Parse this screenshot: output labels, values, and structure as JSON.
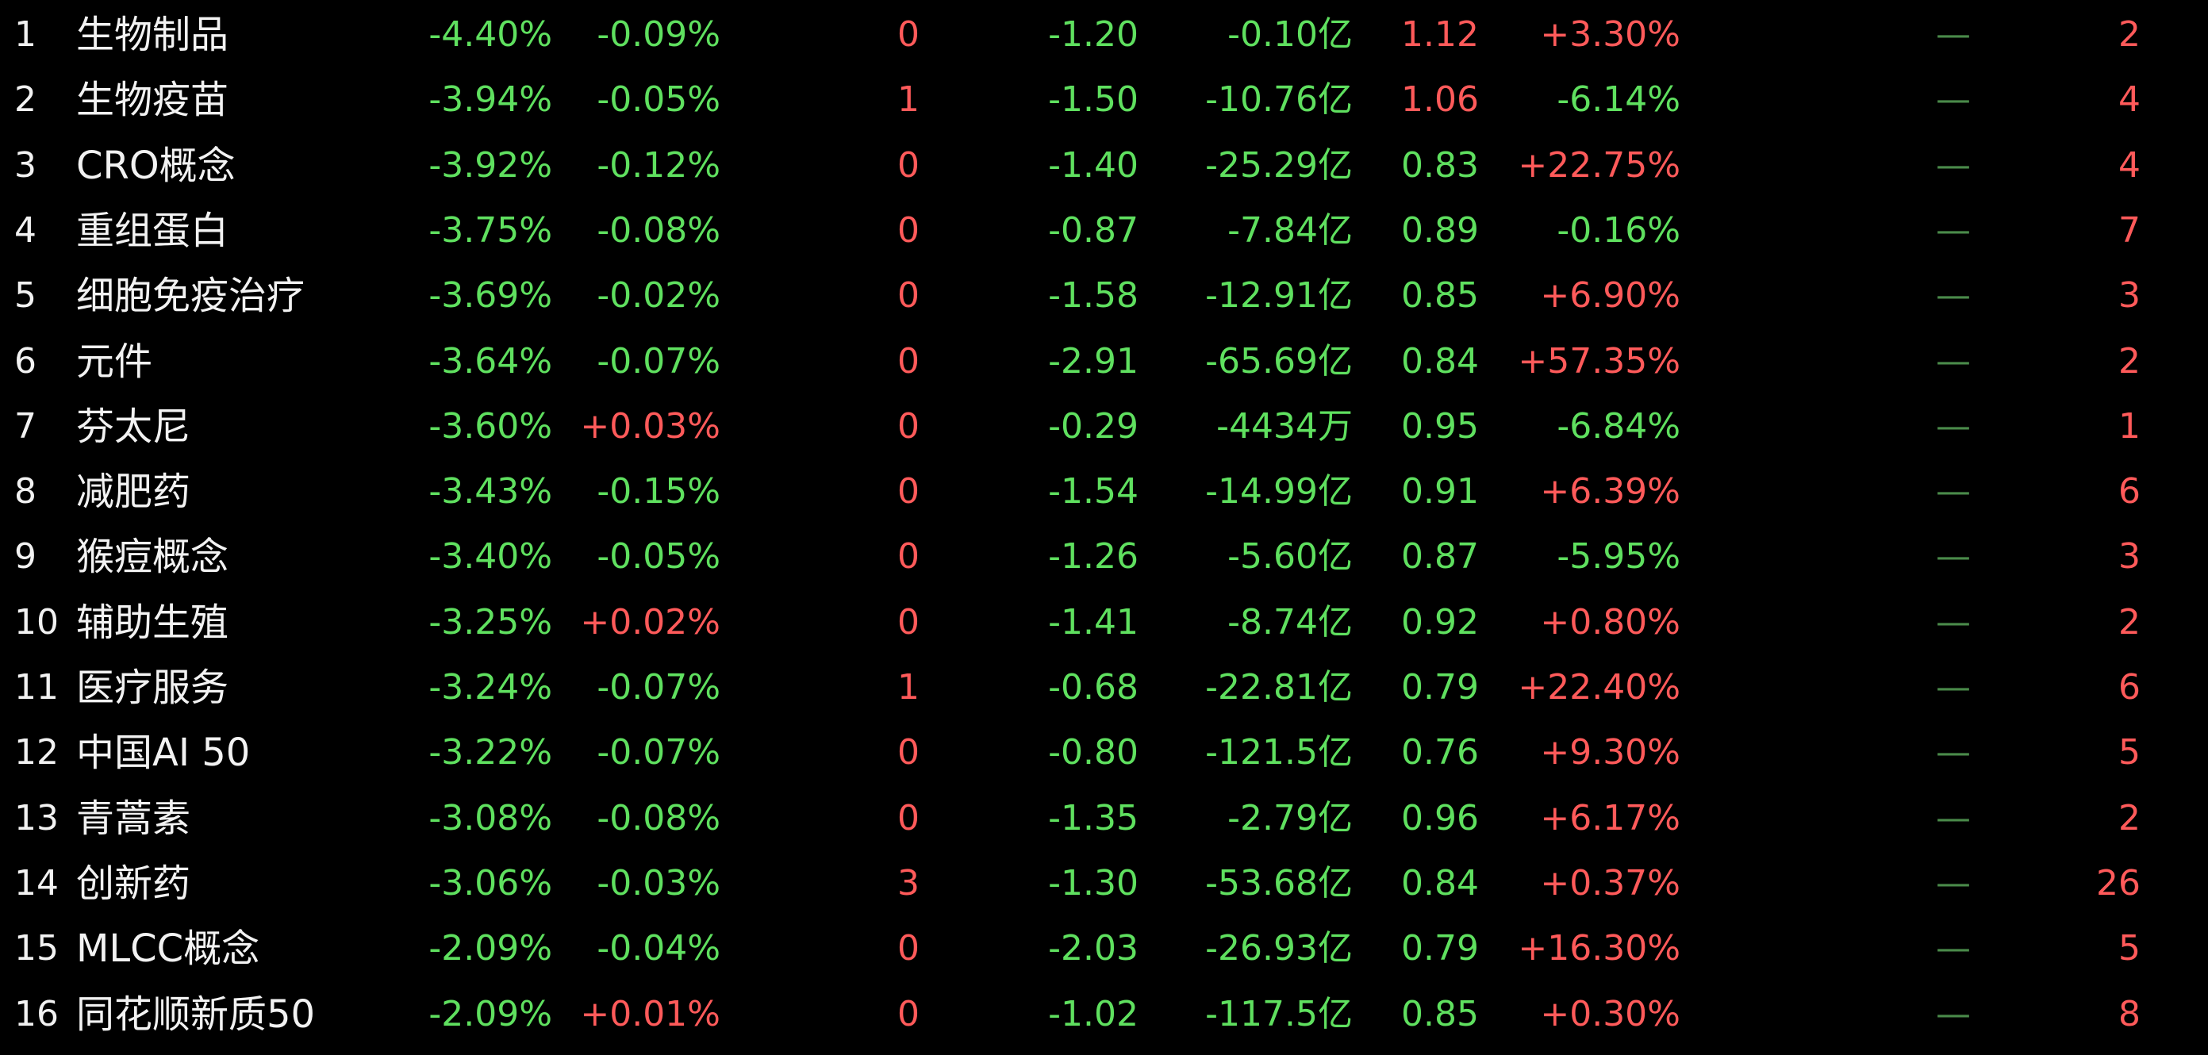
{
  "table": {
    "rows": [
      [
        "1",
        "生物制品",
        "-4.40%",
        "-0.09%",
        "0",
        "-1.20",
        "-0.10亿",
        "1.12",
        "+3.30%",
        "—",
        "2"
      ],
      [
        "2",
        "生物疫苗",
        "-3.94%",
        "-0.05%",
        "1",
        "-1.50",
        "-10.76亿",
        "1.06",
        "-6.14%",
        "—",
        "4"
      ],
      [
        "3",
        "CRO概念",
        "-3.92%",
        "-0.12%",
        "0",
        "-1.40",
        "-25.29亿",
        "0.83",
        "+22.75%",
        "—",
        "4"
      ],
      [
        "4",
        "重组蛋白",
        "-3.75%",
        "-0.08%",
        "0",
        "-0.87",
        "-7.84亿",
        "0.89",
        "-0.16%",
        "—",
        "7"
      ],
      [
        "5",
        "细胞免疫治疗",
        "-3.69%",
        "-0.02%",
        "0",
        "-1.58",
        "-12.91亿",
        "0.85",
        "+6.90%",
        "—",
        "3"
      ],
      [
        "6",
        "元件",
        "-3.64%",
        "-0.07%",
        "0",
        "-2.91",
        "-65.69亿",
        "0.84",
        "+57.35%",
        "—",
        "2"
      ],
      [
        "7",
        "芬太尼",
        "-3.60%",
        "+0.03%",
        "0",
        "-0.29",
        "-4434万",
        "0.95",
        "-6.84%",
        "—",
        "1"
      ],
      [
        "8",
        "减肥药",
        "-3.43%",
        "-0.15%",
        "0",
        "-1.54",
        "-14.99亿",
        "0.91",
        "+6.39%",
        "—",
        "6"
      ],
      [
        "9",
        "猴痘概念",
        "-3.40%",
        "-0.05%",
        "0",
        "-1.26",
        "-5.60亿",
        "0.87",
        "-5.95%",
        "—",
        "3"
      ],
      [
        "10",
        "辅助生殖",
        "-3.25%",
        "+0.02%",
        "0",
        "-1.41",
        "-8.74亿",
        "0.92",
        "+0.80%",
        "—",
        "2"
      ],
      [
        "11",
        "医疗服务",
        "-3.24%",
        "-0.07%",
        "1",
        "-0.68",
        "-22.81亿",
        "0.79",
        "+22.40%",
        "—",
        "6"
      ],
      [
        "12",
        "中国AI 50",
        "-3.22%",
        "-0.07%",
        "0",
        "-0.80",
        "-121.5亿",
        "0.76",
        "+9.30%",
        "—",
        "5"
      ],
      [
        "13",
        "青蒿素",
        "-3.08%",
        "-0.08%",
        "0",
        "-1.35",
        "-2.79亿",
        "0.96",
        "+6.17%",
        "—",
        "2"
      ],
      [
        "14",
        "创新药",
        "-3.06%",
        "-0.03%",
        "3",
        "-1.30",
        "-53.68亿",
        "0.84",
        "+0.37%",
        "—",
        "26"
      ],
      [
        "15",
        "MLCC概念",
        "-2.09%",
        "-0.04%",
        "0",
        "-2.03",
        "-26.93亿",
        "0.79",
        "+16.30%",
        "—",
        "5"
      ],
      [
        "16",
        "同花顺新质50",
        "-2.09%",
        "+0.01%",
        "0",
        "-1.02",
        "-117.5亿",
        "0.85",
        "+0.30%",
        "—",
        "8"
      ]
    ]
  }
}
